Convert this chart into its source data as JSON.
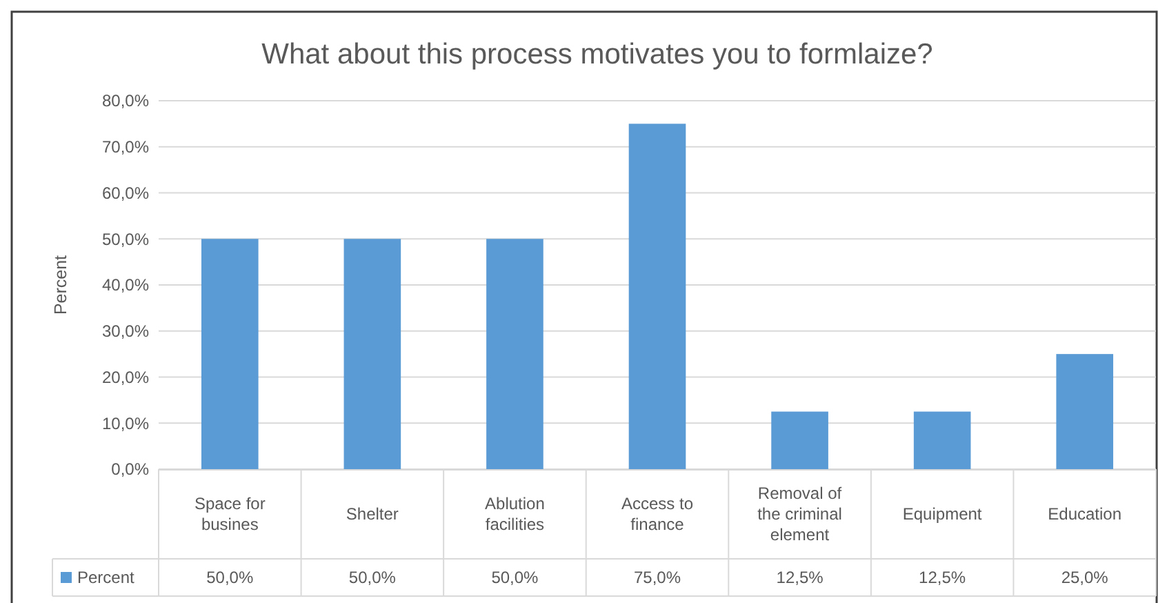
{
  "chart_data": {
    "type": "bar",
    "title": "What about this process motivates you to formlaize?",
    "ylabel": "Percent",
    "categories": [
      "Space for busines",
      "Shelter",
      "Ablution facilities",
      "Access to finance",
      "Removal of the criminal element",
      "Equipment",
      "Education"
    ],
    "series": [
      {
        "name": "Percent",
        "color": "#5b9bd5",
        "values": [
          50,
          50,
          50,
          75,
          12.5,
          12.5,
          25
        ],
        "value_labels": [
          "50,0%",
          "50,0%",
          "50,0%",
          "75,0%",
          "12,5%",
          "12,5%",
          "25,0%"
        ]
      }
    ],
    "ylim": [
      0,
      80
    ],
    "yticks": [
      {
        "value": 0,
        "label": "0,0%"
      },
      {
        "value": 10,
        "label": "10,0%"
      },
      {
        "value": 20,
        "label": "20,0%"
      },
      {
        "value": 30,
        "label": "30,0%"
      },
      {
        "value": 40,
        "label": "40,0%"
      },
      {
        "value": 50,
        "label": "50,0%"
      },
      {
        "value": 60,
        "label": "60,0%"
      },
      {
        "value": 70,
        "label": "70,0%"
      },
      {
        "value": 80,
        "label": "80,0%"
      }
    ],
    "grid": "y",
    "legend": "bottom left"
  }
}
